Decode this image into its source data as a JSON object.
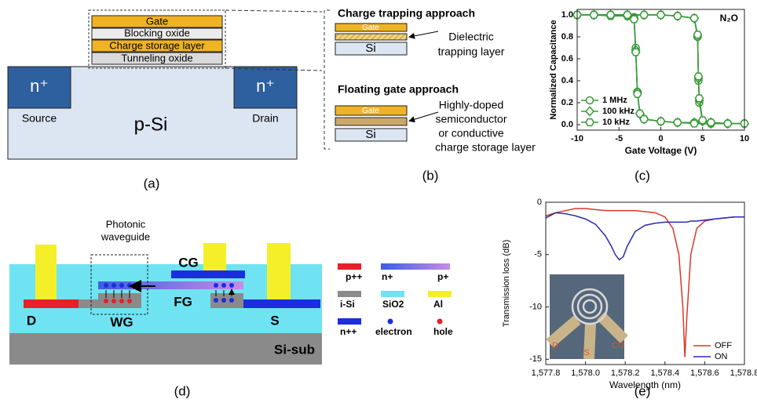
{
  "diagram_a": {
    "gate": "Gate",
    "blocking_oxide": "Blocking oxide",
    "charge_storage_layer": "Charge storage layer",
    "tunneling_oxide": "Tunneling oxide",
    "n_left": "n⁺",
    "n_right": "n⁺",
    "source": "Source",
    "p_si": "p-Si",
    "drain": "Drain",
    "panel_label": "(a)"
  },
  "diagram_b": {
    "heading_1": "Charge trapping approach",
    "gate_1": "Gate",
    "si_1": "Si",
    "note_1": [
      "Dielectric",
      "trapping layer"
    ],
    "heading_2": "Floating gate approach",
    "gate_2": "Gate",
    "si_2": "Si",
    "note_2": [
      "Highly-doped",
      "semiconductor",
      "or conductive",
      "charge storage layer"
    ],
    "panel_label": "(b)"
  },
  "diagram_d": {
    "waveguide": [
      "Photonic",
      "waveguide"
    ],
    "cg": "CG",
    "fg": "FG",
    "d": "D",
    "wg": "WG",
    "s": "S",
    "si_sub": "Si-sub",
    "legend": [
      "p++",
      "n+",
      "p+",
      "i-Si",
      "SiO2",
      "Al",
      "n++",
      "electron",
      "hole"
    ],
    "panel_label": "(d)"
  },
  "chart_data": [
    {
      "type": "line",
      "annotation": "N₂O",
      "x_label": "Gate Voltage (V)",
      "y_label": "Normalized Capacitance",
      "x": [
        -10,
        -8,
        -6,
        -4,
        -3.2,
        -3,
        -2.8,
        -2.5,
        -2,
        0,
        2,
        4,
        6,
        8,
        10,
        8,
        6,
        5,
        4.6,
        4.5,
        4.4,
        4,
        2,
        0,
        -2,
        -4,
        -6,
        -8,
        -10
      ],
      "series": [
        {
          "name": "1 MHz",
          "color": "#3a9a3a",
          "marker": "circle",
          "values": [
            1,
            1,
            1,
            1,
            0.98,
            0.7,
            0.3,
            0.1,
            0.05,
            0.03,
            0.02,
            0.02,
            0.01,
            0.01,
            0.01,
            0.01,
            0.02,
            0.03,
            0.2,
            0.4,
            0.8,
            0.97,
            0.99,
            1,
            1,
            1,
            1,
            1,
            1
          ]
        },
        {
          "name": "100 kHz",
          "color": "#3a9a3a",
          "marker": "diamond",
          "values": [
            1,
            1,
            1,
            0.99,
            0.97,
            0.68,
            0.3,
            0.1,
            0.05,
            0.03,
            0.02,
            0.02,
            0.01,
            0.01,
            0.01,
            0.01,
            0.02,
            0.03,
            0.22,
            0.42,
            0.8,
            0.97,
            0.99,
            1,
            1,
            1,
            1,
            1,
            1
          ]
        },
        {
          "name": "10 kHz",
          "color": "#3a9a3a",
          "marker": "hexagon",
          "values": [
            1,
            1,
            0.99,
            0.99,
            0.96,
            0.66,
            0.28,
            0.1,
            0.05,
            0.03,
            0.02,
            0.01,
            0.01,
            0.01,
            0.01,
            0.01,
            0.02,
            0.04,
            0.24,
            0.44,
            0.82,
            0.97,
            0.99,
            1,
            1,
            1,
            1,
            1,
            1
          ]
        }
      ],
      "xlim": [
        -10,
        10
      ],
      "xticks": [
        -10,
        -5,
        0,
        5,
        10
      ],
      "ylim": [
        -0.05,
        1.05
      ],
      "yticks": [
        {
          "value": 0,
          "label": "0.0"
        },
        0.2,
        0.4,
        0.6,
        0.8,
        {
          "value": 1,
          "label": "1.0"
        }
      ],
      "legend": "lower left",
      "panel_label": "(c)"
    },
    {
      "type": "line",
      "x_label": "Wavelength (nm)",
      "y_label": "Transmission loss (dB)",
      "x": [
        1577.8,
        1577.85,
        1577.9,
        1577.95,
        1578.0,
        1578.05,
        1578.1,
        1578.13,
        1578.15,
        1578.17,
        1578.19,
        1578.21,
        1578.25,
        1578.3,
        1578.35,
        1578.4,
        1578.44,
        1578.47,
        1578.49,
        1578.5,
        1578.51,
        1578.53,
        1578.56,
        1578.6,
        1578.65,
        1578.7,
        1578.75,
        1578.8
      ],
      "series": [
        {
          "name": "OFF",
          "color": "#d9382a",
          "values": [
            -1.3,
            -1.0,
            -0.8,
            -0.6,
            -0.6,
            -0.7,
            -0.8,
            -0.8,
            -0.8,
            -0.8,
            -0.8,
            -0.8,
            -0.8,
            -0.9,
            -1.0,
            -1.4,
            -2.5,
            -5,
            -10,
            -14.8,
            -11,
            -5,
            -2.5,
            -1.8,
            -1.6,
            -1.5,
            -1.4,
            -1.4
          ]
        },
        {
          "name": "ON",
          "color": "#2b2ba8",
          "values": [
            -1.5,
            -1.0,
            -1.1,
            -1.3,
            -1.6,
            -2.1,
            -3.2,
            -4.2,
            -5.0,
            -5.5,
            -5.2,
            -4.2,
            -2.8,
            -2.2,
            -2.0,
            -1.9,
            -1.9,
            -1.9,
            -1.9,
            -1.9,
            -1.9,
            -1.8,
            -1.8,
            -1.7,
            -1.6,
            -1.5,
            -1.4,
            -1.4
          ]
        }
      ],
      "xlim": [
        1577.8,
        1578.8
      ],
      "xticks": [
        {
          "value": 1577.8,
          "label": "1,577.8"
        },
        {
          "value": 1578.0,
          "label": "1,578.0"
        },
        {
          "value": 1578.2,
          "label": "1,578.2"
        },
        {
          "value": 1578.4,
          "label": "1,578.4"
        },
        {
          "value": 1578.6,
          "label": "1,578.6"
        },
        {
          "value": 1578.8,
          "label": "1,578.8"
        }
      ],
      "ylim": [
        -15.5,
        0
      ],
      "yticks": [
        0,
        -5,
        -10,
        -15
      ],
      "inset_labels": [
        "D",
        "S",
        "CG"
      ],
      "legend": "lower right",
      "panel_label": "(e)"
    }
  ]
}
